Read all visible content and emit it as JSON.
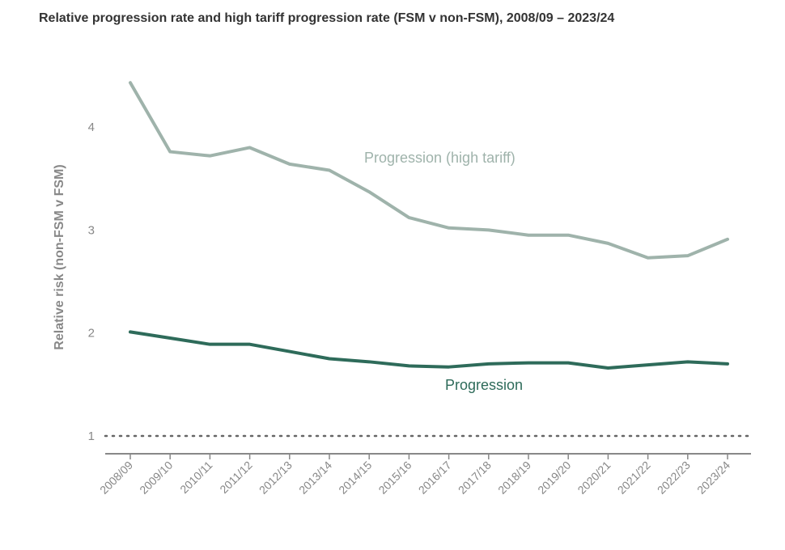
{
  "chart_data": {
    "type": "line",
    "title": "Relative progression rate and high tariff progression rate (FSM v non-FSM), 2008/09 – 2023/24",
    "xlabel": "",
    "ylabel": "Relative risk (non-FSM v FSM)",
    "categories": [
      "2008/09",
      "2009/10",
      "2010/11",
      "2011/12",
      "2012/13",
      "2013/14",
      "2014/15",
      "2015/16",
      "2016/17",
      "2017/18",
      "2018/19",
      "2019/20",
      "2020/21",
      "2021/22",
      "2022/23",
      "2023/24"
    ],
    "yticks": [
      1,
      2,
      3,
      4
    ],
    "ylim": [
      0.8,
      4.4
    ],
    "reference_line": 1,
    "series": [
      {
        "name": "Progression (high tariff)",
        "color": "#9fb3ab",
        "values": [
          4.43,
          3.76,
          3.72,
          3.8,
          3.64,
          3.58,
          3.37,
          3.12,
          3.02,
          3.0,
          2.95,
          2.95,
          2.87,
          2.73,
          2.75,
          2.91
        ]
      },
      {
        "name": "Progression",
        "color": "#2e6b5a",
        "values": [
          2.01,
          1.95,
          1.89,
          1.89,
          1.82,
          1.75,
          1.72,
          1.68,
          1.67,
          1.7,
          1.71,
          1.71,
          1.66,
          1.69,
          1.72,
          1.7
        ]
      }
    ]
  }
}
